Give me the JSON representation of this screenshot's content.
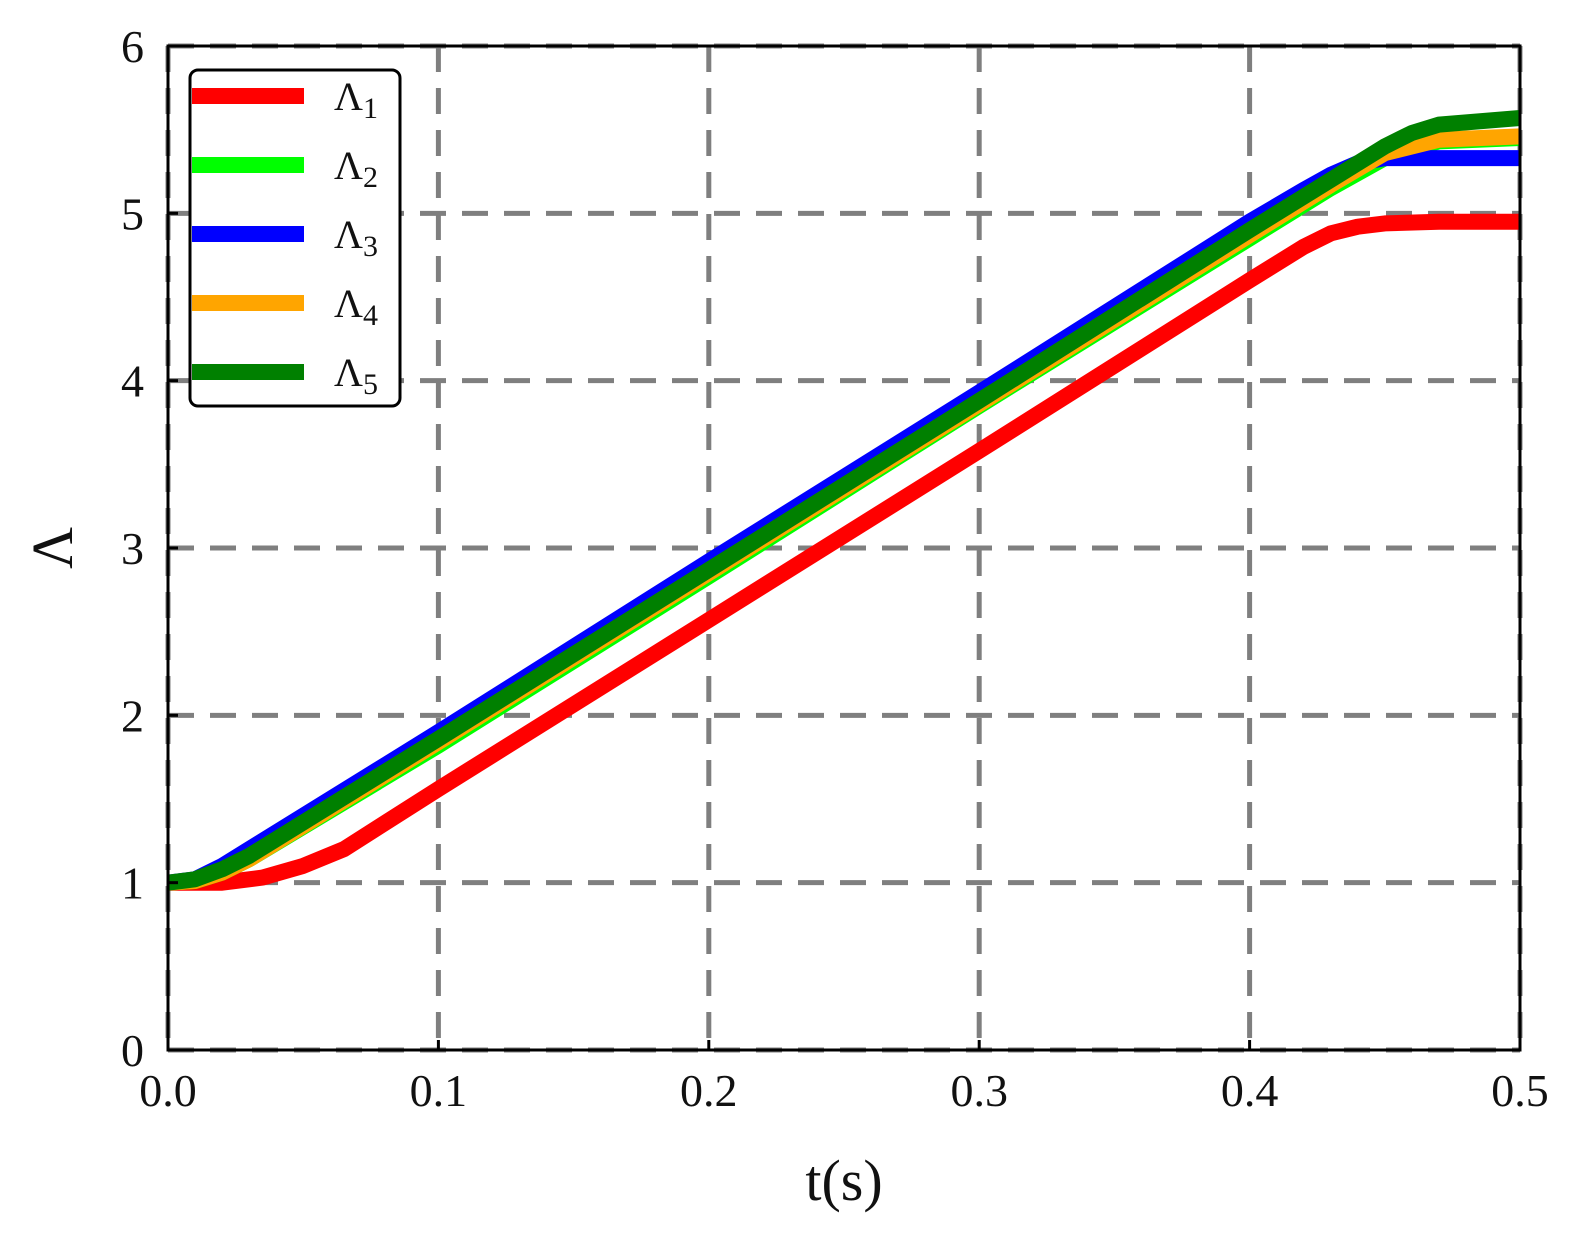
{
  "chart_data": {
    "type": "line",
    "xlabel": "t(s)",
    "ylabel": "Λ",
    "xlim": [
      0,
      0.5
    ],
    "ylim": [
      0,
      6
    ],
    "xticks": [
      "0.0",
      "0.1",
      "0.2",
      "0.3",
      "0.4",
      "0.5"
    ],
    "yticks": [
      "0",
      "1",
      "2",
      "3",
      "4",
      "5",
      "6"
    ],
    "grid": true,
    "grid_style": "dashed",
    "legend_position": "top-left",
    "series": [
      {
        "name": "Λ1",
        "color": "#ff0000",
        "x": [
          0,
          0.02,
          0.035,
          0.05,
          0.065,
          0.1,
          0.2,
          0.3,
          0.4,
          0.42,
          0.43,
          0.44,
          0.45,
          0.47,
          0.5
        ],
        "y": [
          1,
          1.0,
          1.03,
          1.1,
          1.2,
          1.56,
          2.57,
          3.58,
          4.6,
          4.8,
          4.88,
          4.92,
          4.94,
          4.95,
          4.95
        ]
      },
      {
        "name": "Λ2",
        "color": "#00ff00",
        "x": [
          0,
          0.01,
          0.02,
          0.03,
          0.1,
          0.2,
          0.3,
          0.4,
          0.43,
          0.45,
          0.47,
          0.5
        ],
        "y": [
          1,
          1.01,
          1.06,
          1.14,
          1.82,
          2.83,
          3.85,
          4.85,
          5.15,
          5.33,
          5.43,
          5.45
        ]
      },
      {
        "name": "Λ3",
        "color": "#0000ff",
        "x": [
          0,
          0.01,
          0.02,
          0.03,
          0.1,
          0.2,
          0.3,
          0.4,
          0.42,
          0.43,
          0.44,
          0.45,
          0.5
        ],
        "y": [
          1,
          1.02,
          1.1,
          1.2,
          1.9,
          2.92,
          3.93,
          4.95,
          5.14,
          5.23,
          5.3,
          5.33,
          5.33
        ]
      },
      {
        "name": "Λ4",
        "color": "#ffa500",
        "x": [
          0,
          0.01,
          0.02,
          0.03,
          0.1,
          0.2,
          0.3,
          0.4,
          0.43,
          0.45,
          0.47,
          0.5
        ],
        "y": [
          1,
          1.01,
          1.06,
          1.14,
          1.84,
          2.85,
          3.86,
          4.87,
          5.17,
          5.36,
          5.44,
          5.46
        ]
      },
      {
        "name": "Λ5",
        "color": "#008000",
        "x": [
          0,
          0.01,
          0.02,
          0.03,
          0.1,
          0.2,
          0.3,
          0.4,
          0.43,
          0.45,
          0.46,
          0.47,
          0.5
        ],
        "y": [
          1,
          1.02,
          1.08,
          1.16,
          1.86,
          2.87,
          3.88,
          4.9,
          5.2,
          5.4,
          5.48,
          5.53,
          5.57
        ]
      }
    ]
  }
}
